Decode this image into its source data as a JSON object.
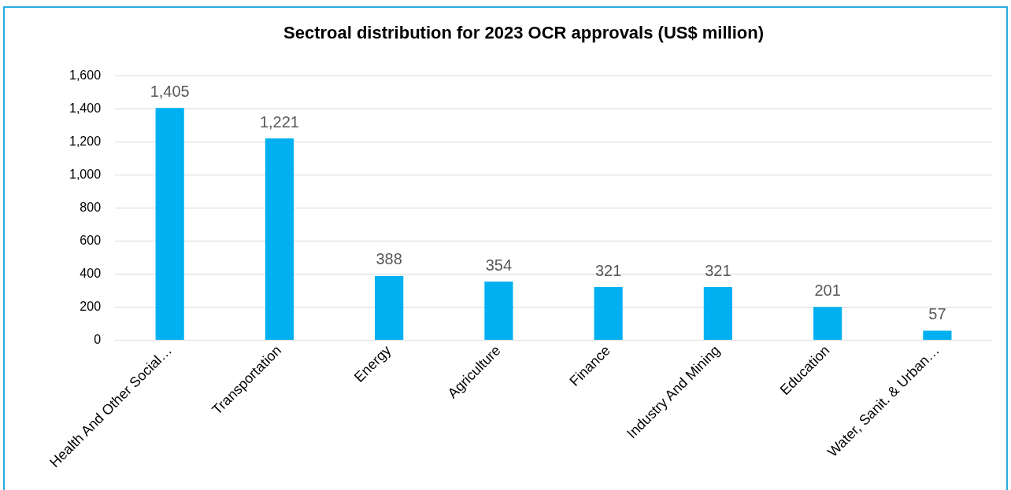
{
  "chart_data": {
    "type": "bar",
    "title": "Sectroal distribution for 2023 OCR approvals (US$ million)",
    "categories": [
      "Health And Other Social…",
      "Transportation",
      "Energy",
      "Agriculture",
      "Finance",
      "Industry And Mining",
      "Education",
      "Water, Sanit. & Urban…"
    ],
    "values": [
      1405,
      1221,
      388,
      354,
      321,
      321,
      201,
      57
    ],
    "value_labels": [
      "1,405",
      "1,221",
      "388",
      "354",
      "321",
      "321",
      "201",
      "57"
    ],
    "color": "#00b0f0",
    "ylim": [
      0,
      1600
    ],
    "yticks": [
      {
        "value": 0,
        "label": "0"
      },
      {
        "value": 200,
        "label": "200"
      },
      {
        "value": 400,
        "label": "400"
      },
      {
        "value": 600,
        "label": "600"
      },
      {
        "value": 800,
        "label": "800"
      },
      {
        "value": 1000,
        "label": "1,000"
      },
      {
        "value": 1200,
        "label": "1,200"
      },
      {
        "value": 1400,
        "label": "1,400"
      },
      {
        "value": 1600,
        "label": "1,600"
      }
    ],
    "grid": "y",
    "legend": false
  }
}
